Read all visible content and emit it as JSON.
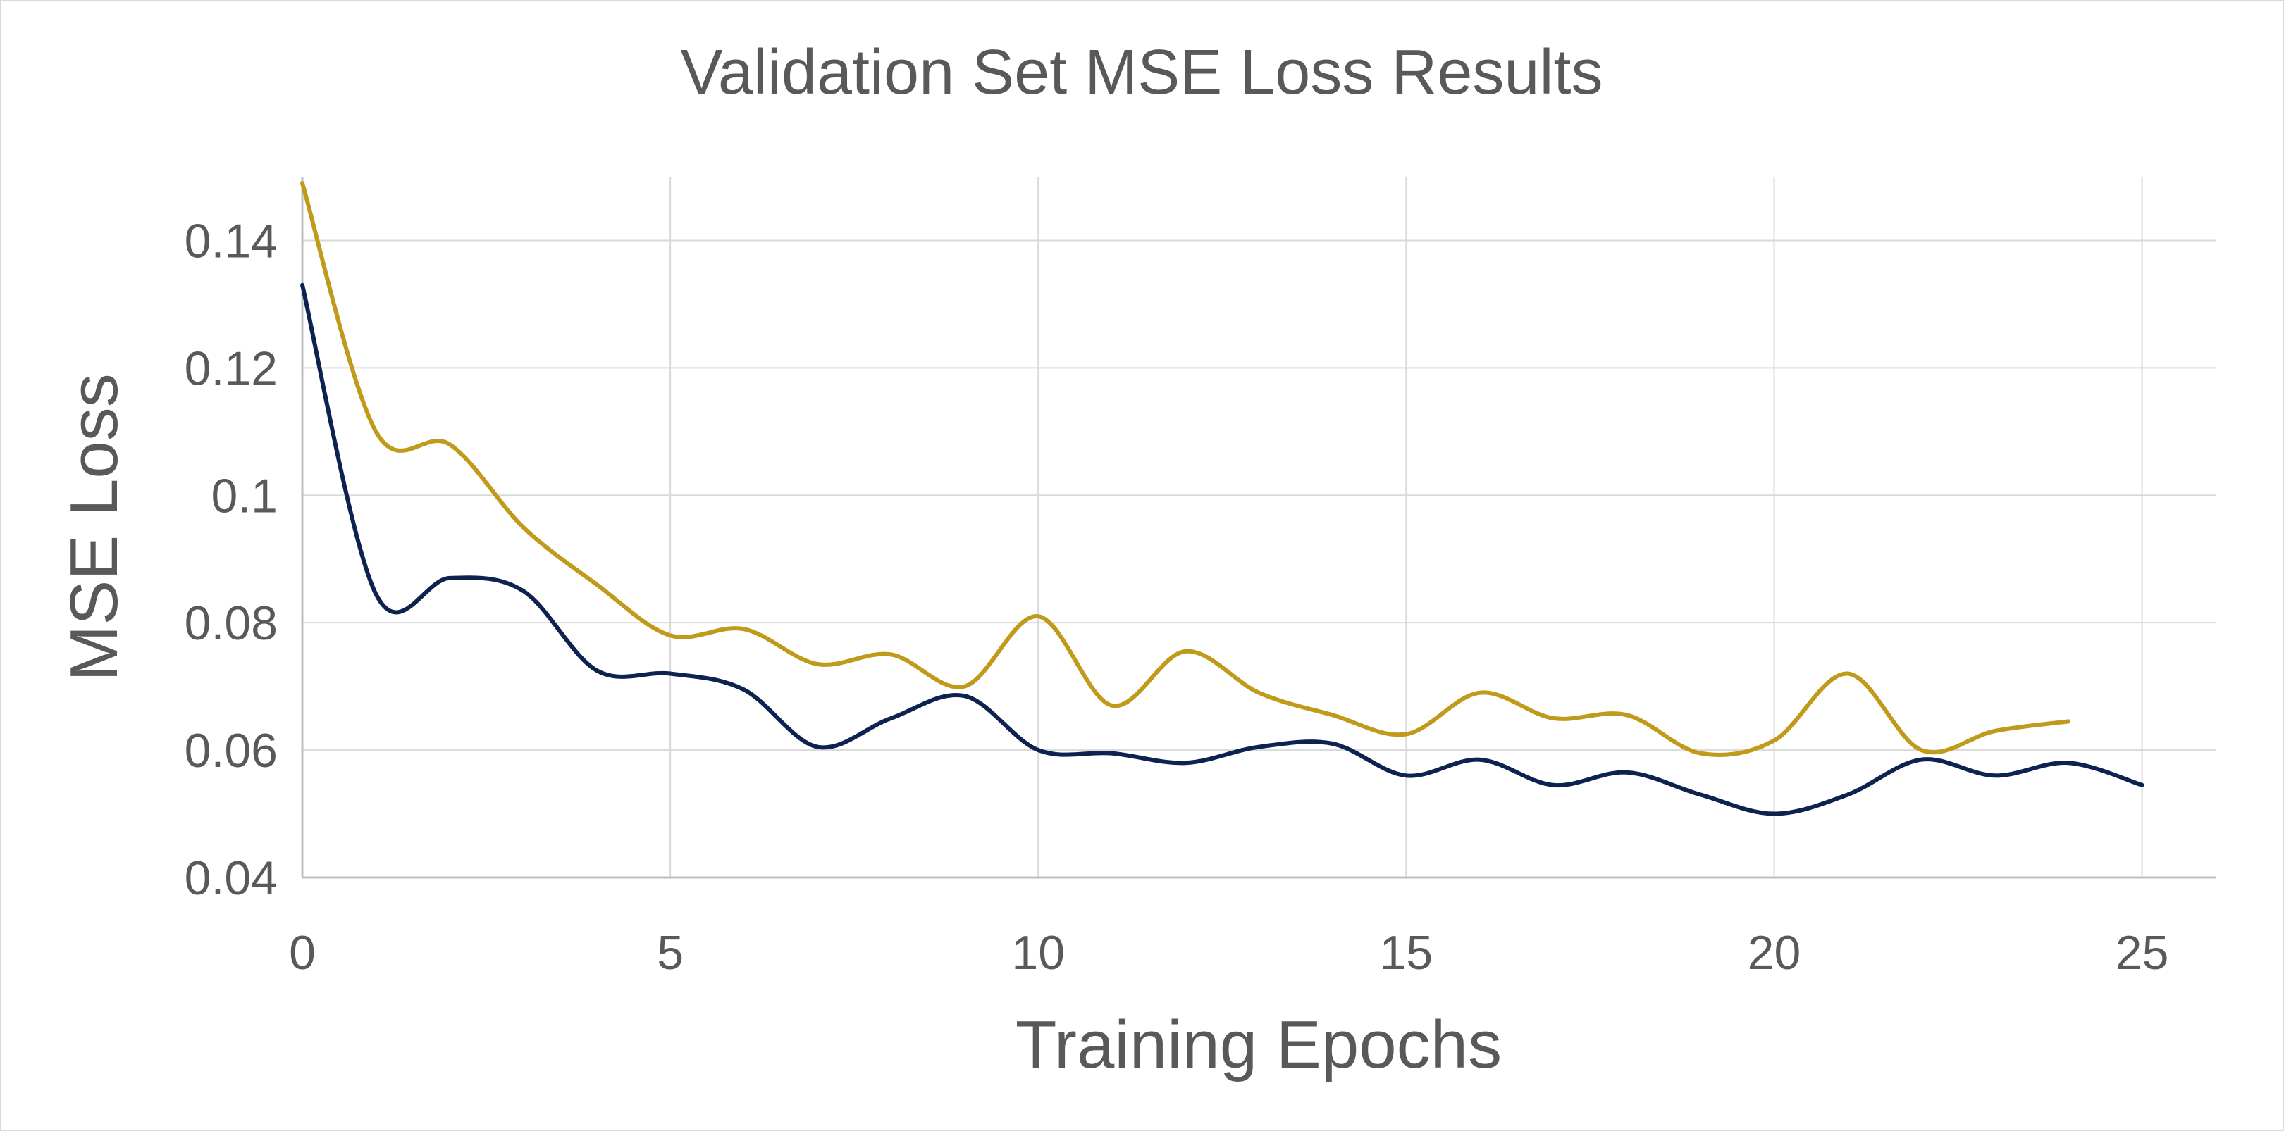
{
  "chart_data": {
    "type": "line",
    "title": "Validation Set MSE Loss Results",
    "xlabel": "Training Epochs",
    "ylabel": "MSE Loss",
    "xlim": [
      0,
      26
    ],
    "ylim": [
      0.04,
      0.15
    ],
    "xticks": [
      0,
      5,
      10,
      15,
      20,
      25
    ],
    "xtick_labels": [
      "0",
      "5",
      "10",
      "15",
      "20",
      "25"
    ],
    "yticks": [
      0.04,
      0.06,
      0.08,
      0.1,
      0.12,
      0.14
    ],
    "ytick_labels": [
      "0.04",
      "0.06",
      "0.08",
      "0.1",
      "0.12",
      "0.14"
    ],
    "grid": true,
    "legend": "none",
    "series": [
      {
        "color": "#c09a1a",
        "x": [
          0,
          1,
          2,
          3,
          4,
          5,
          6,
          7,
          8,
          9,
          10,
          11,
          12,
          13,
          14,
          15,
          16,
          17,
          18,
          19,
          20,
          21,
          22,
          23,
          24
        ],
        "values": [
          0.149,
          0.11,
          0.108,
          0.095,
          0.086,
          0.078,
          0.079,
          0.0735,
          0.075,
          0.07,
          0.081,
          0.067,
          0.0755,
          0.069,
          0.0655,
          0.0625,
          0.069,
          0.065,
          0.0655,
          0.0595,
          0.0615,
          0.072,
          0.06,
          0.063,
          0.0645
        ]
      },
      {
        "color": "#0e2250",
        "x": [
          0,
          1,
          2,
          3,
          4,
          5,
          6,
          7,
          8,
          9,
          10,
          11,
          12,
          13,
          14,
          15,
          16,
          17,
          18,
          19,
          20,
          21,
          22,
          23,
          24,
          25
        ],
        "values": [
          0.133,
          0.0845,
          0.087,
          0.085,
          0.0725,
          0.072,
          0.0695,
          0.0605,
          0.065,
          0.0685,
          0.06,
          0.0595,
          0.058,
          0.0605,
          0.061,
          0.056,
          0.0585,
          0.0545,
          0.0565,
          0.053,
          0.05,
          0.053,
          0.0585,
          0.056,
          0.058,
          0.0545
        ]
      }
    ]
  }
}
